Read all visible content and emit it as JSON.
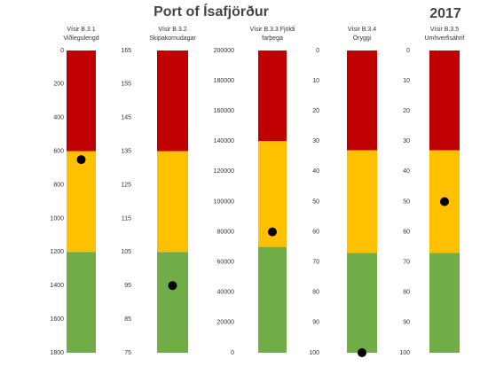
{
  "title": "Port of Ísafjörður",
  "year": "2017",
  "chart_data": [
    {
      "type": "gauge",
      "title": [
        "Vísir B.3.1",
        "Viðlegulengd"
      ],
      "ylim": [
        0,
        1800
      ],
      "inverted": true,
      "yticks": [
        0,
        200,
        400,
        600,
        800,
        1000,
        1200,
        1400,
        1600,
        1800
      ],
      "bands": [
        {
          "color": "#c00000",
          "from": 0,
          "to": 600
        },
        {
          "color": "#ffc000",
          "from": 600,
          "to": 1200
        },
        {
          "color": "#70ad47",
          "from": 1200,
          "to": 1800
        }
      ],
      "value": 650,
      "color": "#000000"
    },
    {
      "type": "gauge",
      "title": [
        "Vísir B.3.2",
        "Skipakomudagar"
      ],
      "ylim": [
        75,
        165
      ],
      "inverted": false,
      "yticks": [
        165,
        155,
        145,
        135,
        125,
        115,
        105,
        95,
        85,
        75
      ],
      "bands": [
        {
          "color": "#c00000",
          "from": 165,
          "to": 135
        },
        {
          "color": "#ffc000",
          "from": 135,
          "to": 105
        },
        {
          "color": "#70ad47",
          "from": 105,
          "to": 75
        }
      ],
      "value": 95,
      "color": "#000000"
    },
    {
      "type": "gauge",
      "title": [
        "Vísir B.3.3 Fjöldi",
        "farþega"
      ],
      "ylim": [
        0,
        200000
      ],
      "inverted": false,
      "yticks": [
        200000,
        180000,
        160000,
        140000,
        120000,
        100000,
        80000,
        60000,
        40000,
        20000,
        0
      ],
      "bands": [
        {
          "color": "#c00000",
          "from": 200000,
          "to": 140000
        },
        {
          "color": "#ffc000",
          "from": 140000,
          "to": 70000
        },
        {
          "color": "#70ad47",
          "from": 70000,
          "to": 0
        }
      ],
      "value": 80000,
      "color": "#000000"
    },
    {
      "type": "gauge",
      "title": [
        "Vísir B.3.4",
        "Öryggi"
      ],
      "ylim": [
        0,
        100
      ],
      "inverted": true,
      "yticks": [
        0,
        10,
        20,
        30,
        40,
        50,
        60,
        70,
        80,
        90,
        100
      ],
      "bands": [
        {
          "color": "#c00000",
          "from": 0,
          "to": 33
        },
        {
          "color": "#ffc000",
          "from": 33,
          "to": 67
        },
        {
          "color": "#70ad47",
          "from": 67,
          "to": 100
        }
      ],
      "value": 100,
      "color": "#000000"
    },
    {
      "type": "gauge",
      "title": [
        "Vísir B.3.5",
        "Umhverfisáhrif"
      ],
      "ylim": [
        0,
        100
      ],
      "inverted": true,
      "yticks": [
        0,
        10,
        20,
        30,
        40,
        50,
        60,
        70,
        80,
        90,
        100
      ],
      "bands": [
        {
          "color": "#c00000",
          "from": 0,
          "to": 33
        },
        {
          "color": "#ffc000",
          "from": 33,
          "to": 67
        },
        {
          "color": "#70ad47",
          "from": 67,
          "to": 100
        }
      ],
      "value": 50,
      "color": "#000000"
    }
  ]
}
